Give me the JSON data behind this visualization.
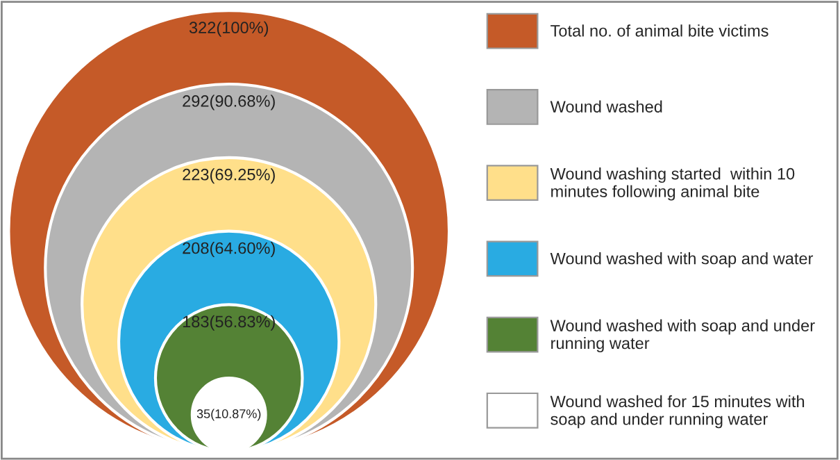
{
  "chart_data": {
    "type": "other",
    "categories": [
      "Total no. of animal bite victims",
      "Wound washed",
      "Wound washing started  within 10 minutes following animal bite",
      "Wound washed with soap and water",
      "Wound washed with soap and under running water",
      "Wound washed for 15 minutes with soap and under running water"
    ],
    "values": [
      322,
      292,
      223,
      208,
      183,
      35
    ],
    "value_labels": [
      "322(100%)",
      "292(90.68%)",
      "223(69.25%)",
      "208(64.60%)",
      "183(56.83%)",
      "35(10.87%)"
    ],
    "colors": [
      "#c55a28",
      "#b4b4b4",
      "#ffdf8a",
      "#29abe2",
      "#548235",
      "#ffffff"
    ]
  }
}
